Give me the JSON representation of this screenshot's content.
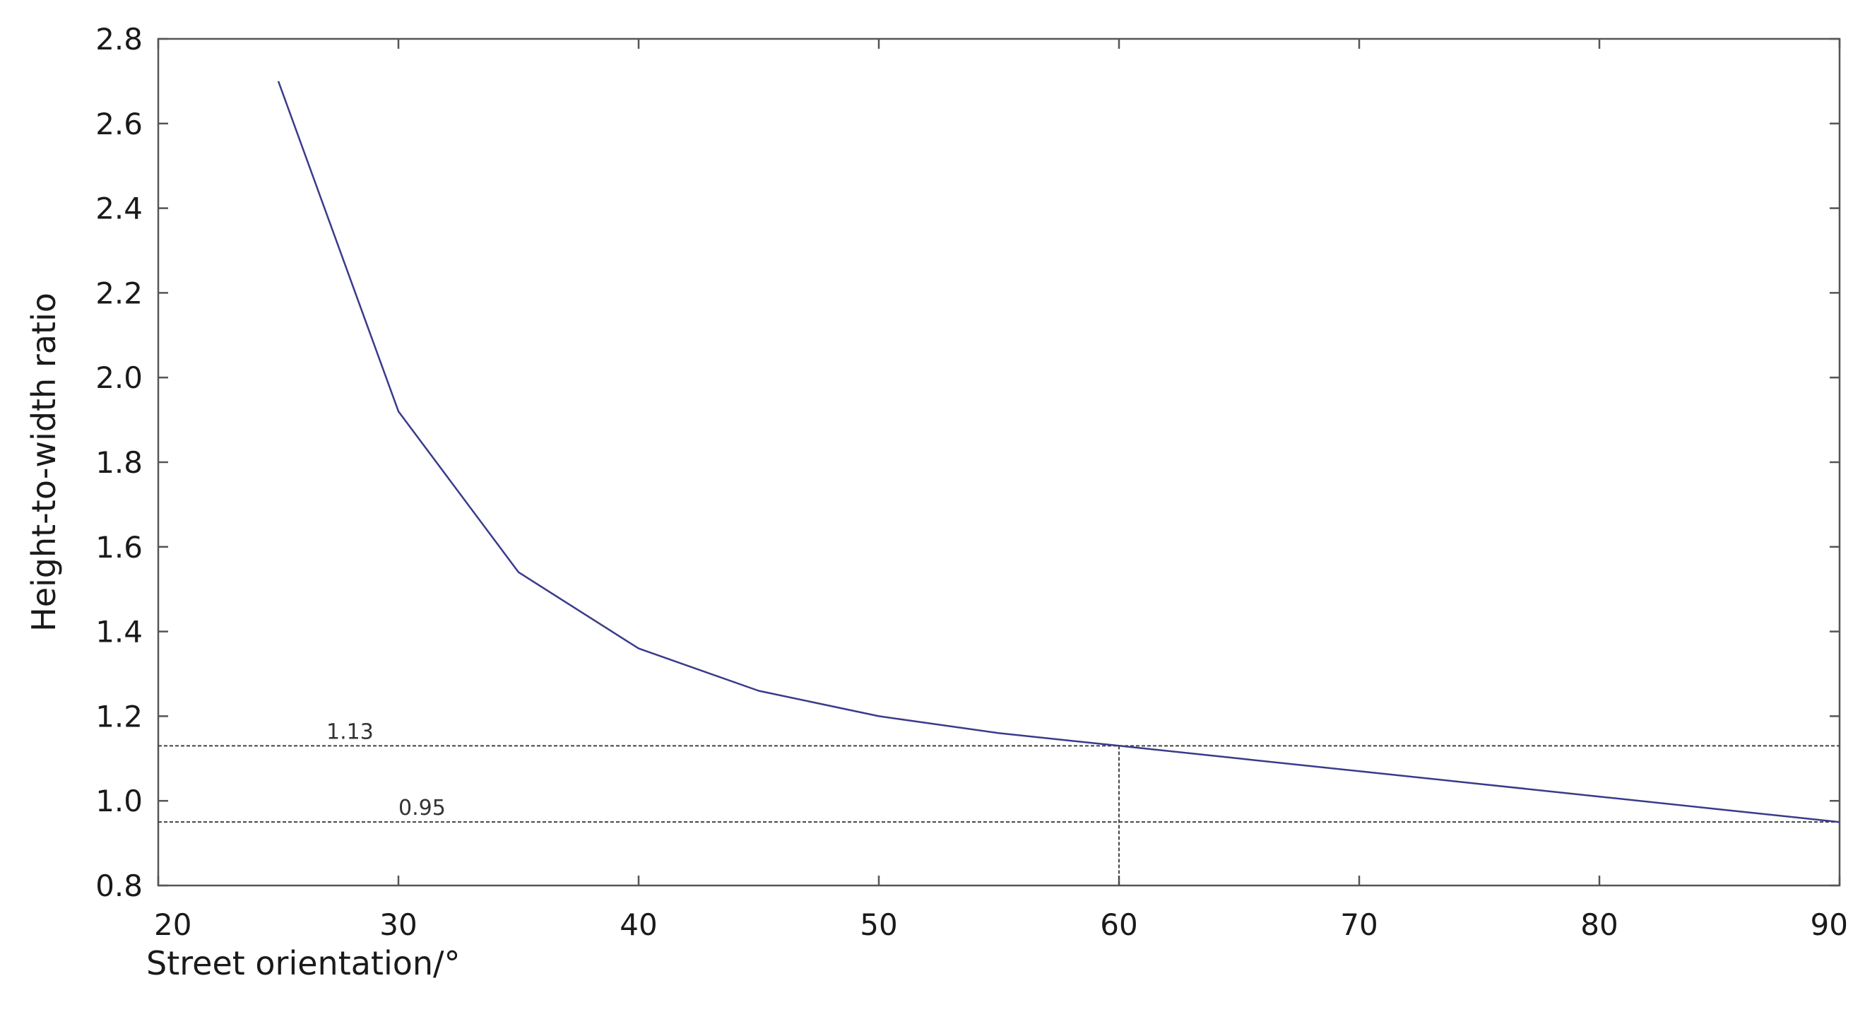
{
  "chart_data": {
    "type": "line",
    "title": "",
    "xlabel": "Street orientation/°",
    "ylabel": "Height-to-width ratio",
    "xlim": [
      20,
      90
    ],
    "ylim": [
      0.8,
      2.8
    ],
    "xticks": [
      20,
      30,
      40,
      50,
      60,
      70,
      80,
      90
    ],
    "xtick_labels": [
      "20",
      "30",
      "40",
      "50",
      "60",
      "70",
      "80",
      "90"
    ],
    "yticks": [
      0.8,
      1.0,
      1.2,
      1.4,
      1.6,
      1.8,
      2.0,
      2.2,
      2.4,
      2.6,
      2.8
    ],
    "ytick_labels": [
      "0.8",
      "1.0",
      "1.2",
      "1.4",
      "1.6",
      "1.8",
      "2.0",
      "2.2",
      "2.4",
      "2.6",
      "2.8"
    ],
    "grid": false,
    "series": [
      {
        "color": "#3a3a8c",
        "x": [
          25,
          30,
          35,
          40,
          45,
          50,
          55,
          60,
          65,
          70,
          75,
          80,
          85,
          90
        ],
        "y": [
          2.7,
          1.92,
          1.54,
          1.36,
          1.26,
          1.2,
          1.16,
          1.13,
          1.1,
          1.07,
          1.04,
          1.01,
          0.98,
          0.95
        ]
      }
    ],
    "annotations": [
      {
        "label": "1.13",
        "y": 1.13,
        "x_label": 27
      },
      {
        "label": "0.95",
        "y": 0.95,
        "x_label": 30
      }
    ],
    "reference_vertical_x": 60,
    "reference_vertical_ymax": 1.13
  }
}
